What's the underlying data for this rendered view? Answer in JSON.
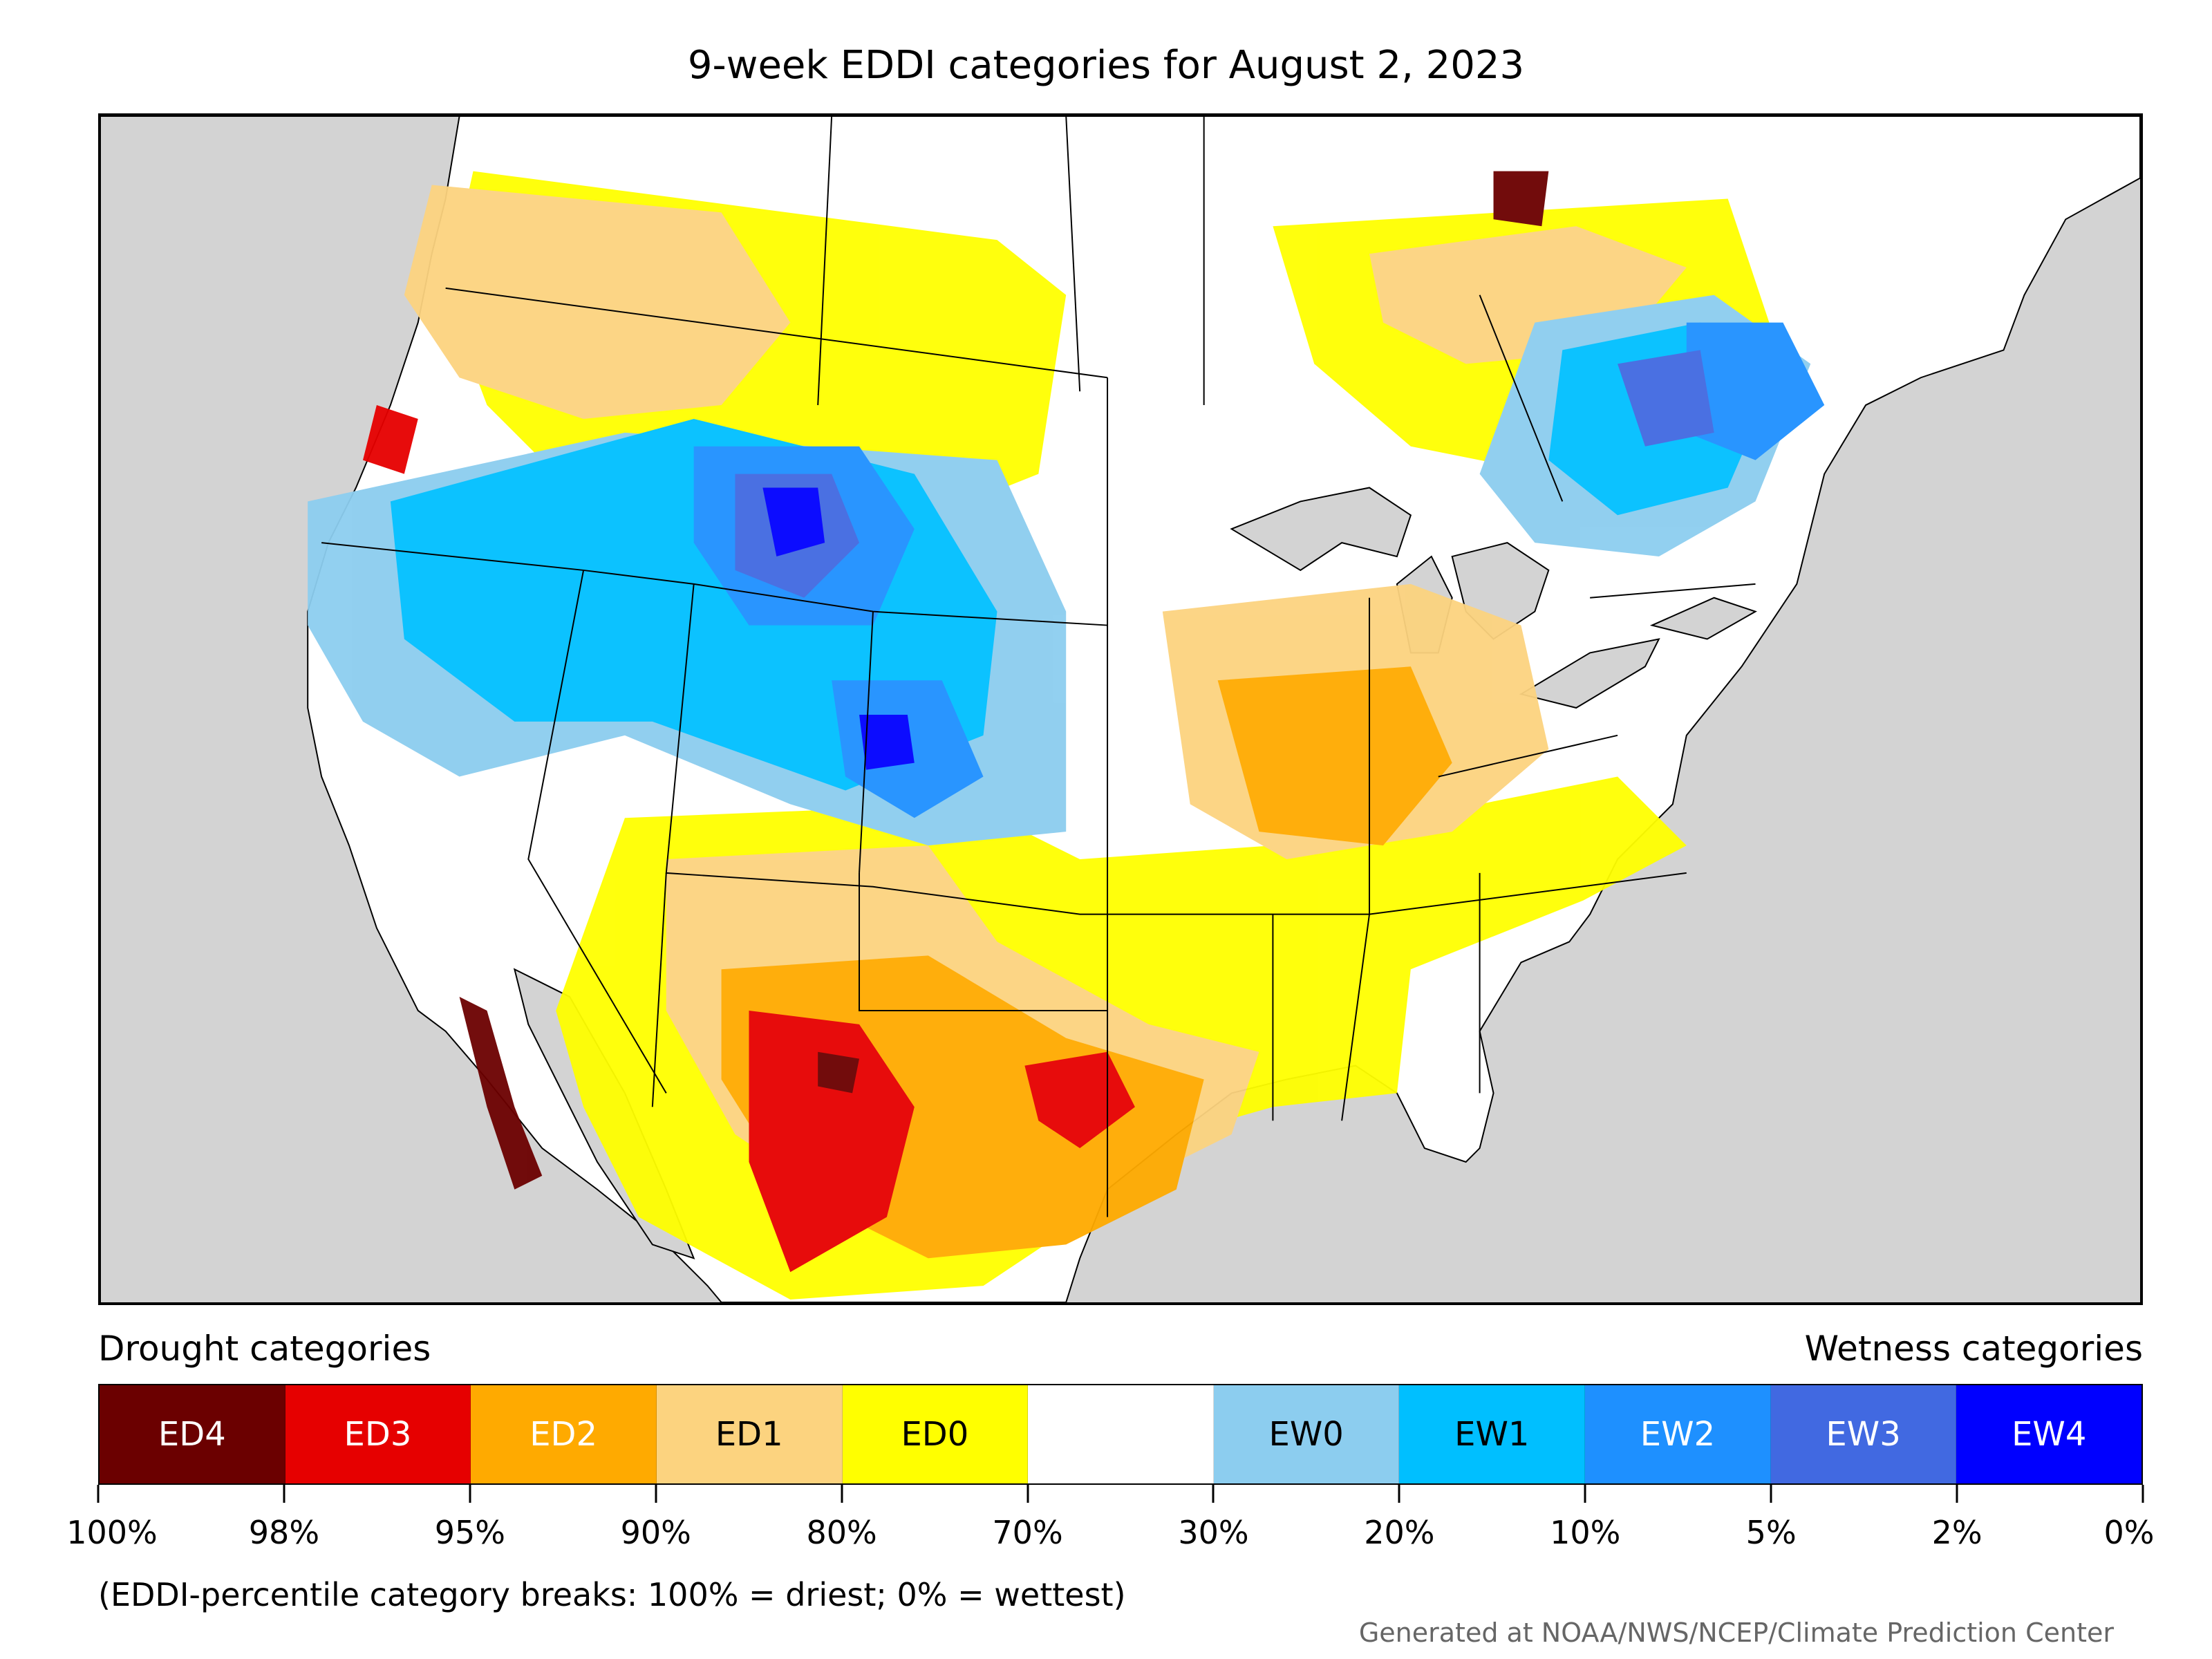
{
  "title": "9-week EDDI categories for August 2, 2023",
  "legend": {
    "drought_heading": "Drought categories",
    "wetness_heading": "Wetness categories",
    "categories": [
      {
        "label": "ED4",
        "color": "#6b0000",
        "text_color": "#ffffff"
      },
      {
        "label": "ED3",
        "color": "#e60000",
        "text_color": "#ffffff"
      },
      {
        "label": "ED2",
        "color": "#ffaa00",
        "text_color": "#ffffff"
      },
      {
        "label": "ED1",
        "color": "#fcd37f",
        "text_color": "#000000"
      },
      {
        "label": "ED0",
        "color": "#ffff00",
        "text_color": "#000000"
      },
      {
        "label": "",
        "color": "#ffffff",
        "text_color": "#000000"
      },
      {
        "label": "EW0",
        "color": "#8ccdef",
        "text_color": "#000000"
      },
      {
        "label": "EW1",
        "color": "#00bfff",
        "text_color": "#000000"
      },
      {
        "label": "EW2",
        "color": "#1e90ff",
        "text_color": "#ffffff"
      },
      {
        "label": "EW3",
        "color": "#4169e1",
        "text_color": "#ffffff"
      },
      {
        "label": "EW4",
        "color": "#0000ff",
        "text_color": "#ffffff"
      }
    ],
    "tick_labels": [
      "100%",
      "98%",
      "95%",
      "90%",
      "80%",
      "70%",
      "30%",
      "20%",
      "10%",
      "5%",
      "2%",
      "0%"
    ]
  },
  "footnote": "(EDDI-percentile category breaks: 100% = driest; 0% = wettest)",
  "credit": "Generated at NOAA/NWS/NCEP/Climate Prediction Center"
}
